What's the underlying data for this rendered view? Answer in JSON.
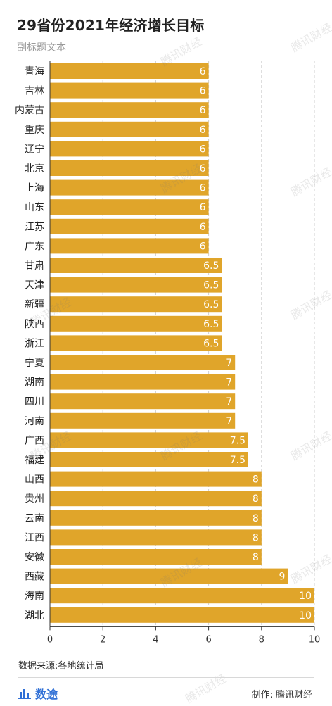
{
  "header": {
    "title": "29省份2021年经济增长目标",
    "subtitle": "副标题文本"
  },
  "footer": {
    "source": "数据来源:各地统计局",
    "brand": "数途",
    "credit": "制作: 腾讯财经"
  },
  "watermark_text": "腾讯财经",
  "colors": {
    "bar": "#E0A52A",
    "bar_label": "#ffffff",
    "grid": "#cfcfcf",
    "axis": "#333333",
    "brand": "#2f6fd6"
  },
  "chart_data": {
    "type": "bar",
    "orientation": "horizontal",
    "categories": [
      "青海",
      "吉林",
      "内蒙古",
      "重庆",
      "辽宁",
      "北京",
      "上海",
      "山东",
      "江苏",
      "广东",
      "甘肃",
      "天津",
      "新疆",
      "陕西",
      "浙江",
      "宁夏",
      "湖南",
      "四川",
      "河南",
      "广西",
      "福建",
      "山西",
      "贵州",
      "云南",
      "江西",
      "安徽",
      "西藏",
      "海南",
      "湖北"
    ],
    "values": [
      6,
      6,
      6,
      6,
      6,
      6,
      6,
      6,
      6,
      6,
      6.5,
      6.5,
      6.5,
      6.5,
      6.5,
      7,
      7,
      7,
      7,
      7.5,
      7.5,
      8,
      8,
      8,
      8,
      8,
      9,
      10,
      10
    ],
    "xlim": [
      0,
      10
    ],
    "xticks": [
      0,
      2,
      4,
      6,
      8,
      10
    ],
    "grid": true,
    "data_labels": true
  }
}
